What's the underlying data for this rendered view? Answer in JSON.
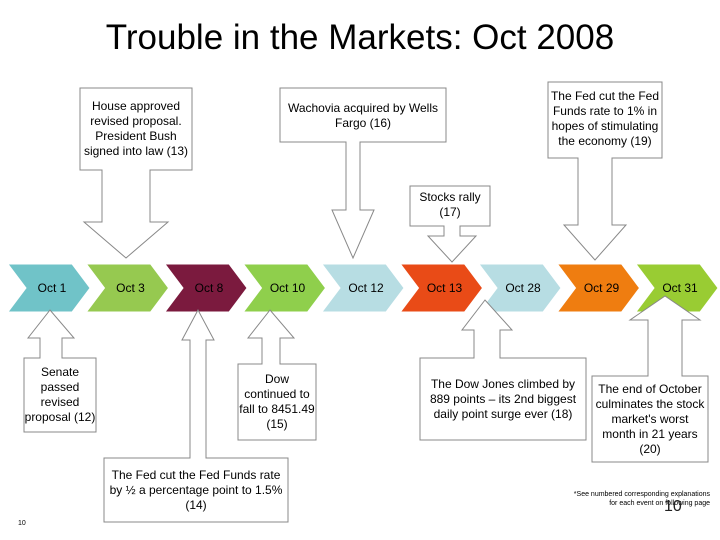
{
  "title": "Trouble in the Markets: Oct 2008",
  "timeline": [
    {
      "label": "Oct 1",
      "color": "#70c3c8"
    },
    {
      "label": "Oct 3",
      "color": "#96c950"
    },
    {
      "label": "Oct 8",
      "color": "#7b1a3e"
    },
    {
      "label": "Oct 10",
      "color": "#8fcf4c"
    },
    {
      "label": "Oct 12",
      "color": "#b7dde3"
    },
    {
      "label": "Oct 13",
      "color": "#e94b17"
    },
    {
      "label": "Oct 28",
      "color": "#b7dde3"
    },
    {
      "label": "Oct 29",
      "color": "#ef7d10"
    },
    {
      "label": "Oct 31",
      "color": "#99cc33"
    }
  ],
  "events": {
    "house": "House approved revised proposal. President Bush signed into law (13)",
    "wachovia": "Wachovia acquired by Wells Fargo (16)",
    "fed_cut_1pct": "The Fed cut the Fed Funds rate to 1% in hopes of stimulating the economy (19)",
    "stocks_rally": "Stocks rally (17)",
    "senate": "Senate passed revised proposal (12)",
    "dow_fall": "Dow continued to fall to 8451.49 (15)",
    "fed_cut_half": "The Fed cut the Fed Funds rate by ½ a percentage point to 1.5% (14)",
    "dow_climb": "The Dow Jones climbed by 889 points – its 2nd biggest daily point surge ever (18)",
    "end_october": "The end of October culminates the stock market's worst month in 21 years (20)"
  },
  "footnote": "*See numbered corresponding explanations for each event on following page",
  "page_number_small": "10",
  "page_number_large": "10"
}
